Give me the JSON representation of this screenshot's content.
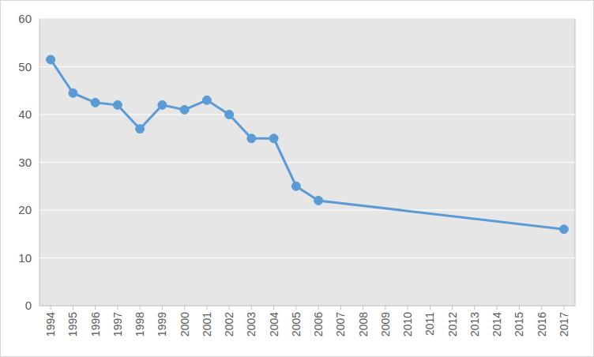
{
  "chart_data": {
    "type": "line",
    "x": [
      1994,
      1995,
      1996,
      1997,
      1998,
      1999,
      2000,
      2001,
      2002,
      2003,
      2004,
      2005,
      2006,
      2017
    ],
    "values": [
      51.5,
      44.5,
      42.5,
      42,
      37,
      42,
      41,
      43,
      40,
      35,
      35,
      25,
      22,
      16
    ],
    "color": "#5b9bd5",
    "marker": "circle",
    "line_style": "solid",
    "xlim": [
      1993.5,
      2017.5
    ],
    "xticks": [
      1994,
      1995,
      1996,
      1997,
      1998,
      1999,
      2000,
      2001,
      2002,
      2003,
      2004,
      2005,
      2006,
      2007,
      2008,
      2009,
      2010,
      2011,
      2012,
      2013,
      2014,
      2015,
      2016,
      2017
    ],
    "ylim": [
      0,
      60
    ],
    "yticks": [
      0,
      10,
      20,
      30,
      40,
      50,
      60
    ],
    "grid": true
  }
}
